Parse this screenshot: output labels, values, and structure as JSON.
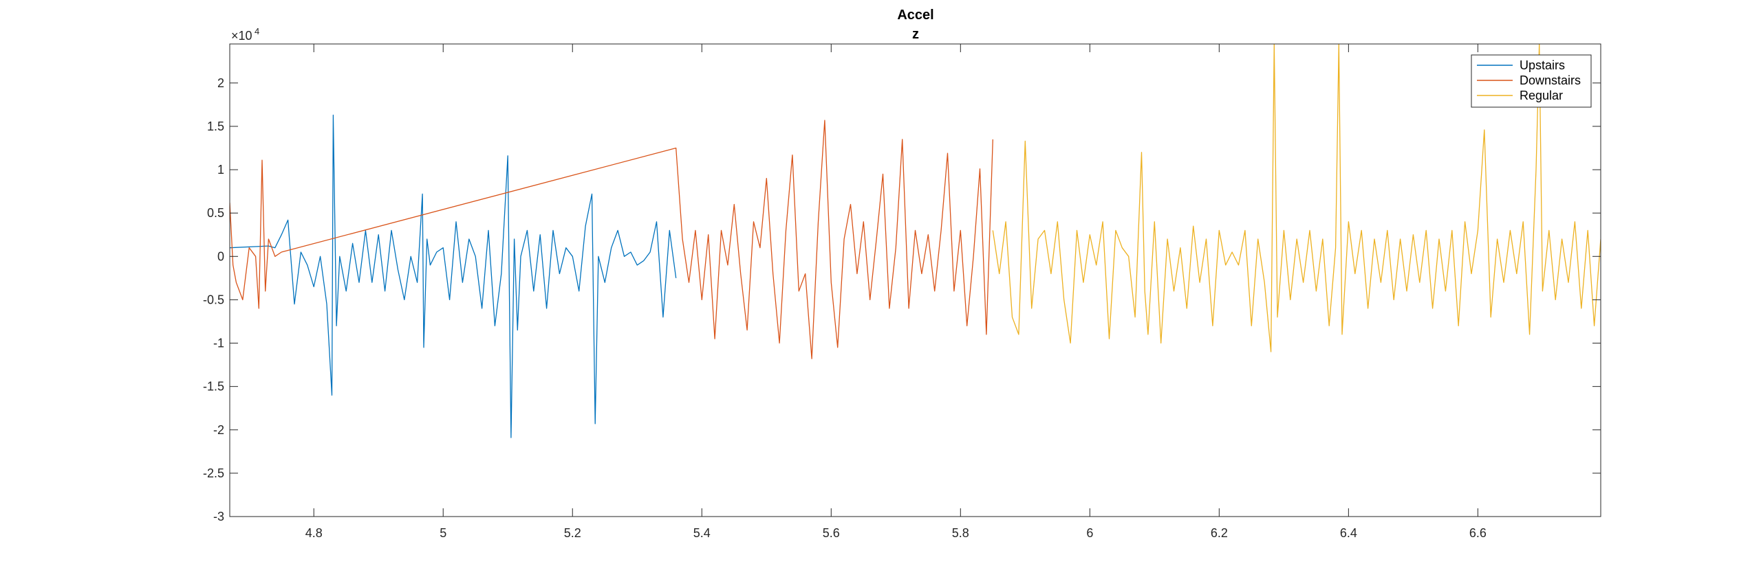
{
  "chart_data": {
    "type": "line",
    "title": "Accel",
    "subtitle": "z",
    "xlabel": "",
    "ylabel": "",
    "y_exponent_label": "×10",
    "y_exponent_power": "4",
    "xlim": [
      4.67,
      6.79
    ],
    "ylim": [
      -3,
      2.45
    ],
    "x_ticks": [
      4.8,
      5,
      5.2,
      5.4,
      5.6,
      5.8,
      6,
      6.2,
      6.4,
      6.6
    ],
    "x_tick_labels": [
      "4.8",
      "5",
      "5.2",
      "5.4",
      "5.6",
      "5.8",
      "6",
      "6.2",
      "6.4",
      "6.6"
    ],
    "y_ticks": [
      -3,
      -2.5,
      -2,
      -1.5,
      -1,
      -0.5,
      0,
      0.5,
      1,
      1.5,
      2
    ],
    "y_tick_labels": [
      "-3",
      "-2.5",
      "-2",
      "-1.5",
      "-1",
      "-0.5",
      "0",
      "0.5",
      "1",
      "1.5",
      "2"
    ],
    "grid": false,
    "legend_position": "top-right",
    "series": [
      {
        "name": "Upstairs",
        "color": "#0072BD",
        "x": [
          4.67,
          4.73,
          4.74,
          4.75,
          4.76,
          4.77,
          4.78,
          4.79,
          4.8,
          4.81,
          4.82,
          4.828,
          4.83,
          4.835,
          4.84,
          4.85,
          4.86,
          4.87,
          4.88,
          4.89,
          4.9,
          4.91,
          4.92,
          4.93,
          4.94,
          4.95,
          4.96,
          4.968,
          4.97,
          4.975,
          4.98,
          4.99,
          5.0,
          5.01,
          5.02,
          5.03,
          5.04,
          5.05,
          5.06,
          5.07,
          5.08,
          5.09,
          5.1,
          5.105,
          5.11,
          5.115,
          5.12,
          5.13,
          5.14,
          5.15,
          5.16,
          5.17,
          5.18,
          5.19,
          5.2,
          5.21,
          5.22,
          5.23,
          5.235,
          5.24,
          5.25,
          5.26,
          5.27,
          5.28,
          5.29,
          5.3,
          5.31,
          5.32,
          5.33,
          5.34,
          5.35,
          5.36
        ],
        "y": [
          0.1,
          0.12,
          0.1,
          0.25,
          0.42,
          -0.55,
          0.05,
          -0.1,
          -0.35,
          0.0,
          -0.55,
          -1.6,
          1.63,
          -0.8,
          0.0,
          -0.4,
          0.15,
          -0.3,
          0.3,
          -0.3,
          0.25,
          -0.4,
          0.3,
          -0.15,
          -0.5,
          0.0,
          -0.3,
          0.72,
          -1.05,
          0.2,
          -0.1,
          0.05,
          0.1,
          -0.5,
          0.4,
          -0.3,
          0.2,
          0.0,
          -0.6,
          0.3,
          -0.8,
          -0.2,
          1.16,
          -2.09,
          0.2,
          -0.85,
          0.0,
          0.3,
          -0.4,
          0.25,
          -0.6,
          0.3,
          -0.2,
          0.1,
          0.0,
          -0.4,
          0.35,
          0.72,
          -1.93,
          0.0,
          -0.3,
          0.1,
          0.3,
          0.0,
          0.05,
          -0.1,
          -0.05,
          0.05,
          0.4,
          -0.7,
          0.3,
          -0.25
        ]
      },
      {
        "name": "Downstairs",
        "color": "#D95319",
        "x": [
          4.67,
          4.675,
          4.68,
          4.69,
          4.7,
          4.71,
          4.715,
          4.72,
          4.725,
          4.73,
          4.74,
          4.75,
          5.36,
          5.37,
          5.38,
          5.39,
          5.4,
          5.41,
          5.42,
          5.43,
          5.44,
          5.45,
          5.46,
          5.47,
          5.48,
          5.49,
          5.5,
          5.51,
          5.52,
          5.53,
          5.54,
          5.55,
          5.56,
          5.57,
          5.58,
          5.59,
          5.6,
          5.61,
          5.62,
          5.63,
          5.64,
          5.65,
          5.66,
          5.67,
          5.68,
          5.69,
          5.7,
          5.71,
          5.72,
          5.73,
          5.74,
          5.75,
          5.76,
          5.77,
          5.78,
          5.79,
          5.8,
          5.81,
          5.82,
          5.83,
          5.84,
          5.85
        ],
        "y": [
          0.62,
          -0.1,
          -0.3,
          -0.5,
          0.1,
          0.0,
          -0.6,
          1.11,
          -0.4,
          0.2,
          0.0,
          0.05,
          1.25,
          0.2,
          -0.3,
          0.3,
          -0.5,
          0.25,
          -0.95,
          0.3,
          -0.1,
          0.6,
          -0.2,
          -0.85,
          0.4,
          0.1,
          0.9,
          -0.2,
          -1.0,
          0.3,
          1.17,
          -0.4,
          -0.2,
          -1.18,
          0.4,
          1.57,
          -0.3,
          -1.05,
          0.2,
          0.6,
          -0.2,
          0.4,
          -0.5,
          0.2,
          0.95,
          -0.6,
          0.1,
          1.35,
          -0.6,
          0.3,
          -0.2,
          0.25,
          -0.4,
          0.3,
          1.19,
          -0.4,
          0.3,
          -0.8,
          0.0,
          1.01,
          -0.9,
          1.35
        ]
      },
      {
        "name": "Regular",
        "color": "#EDB120",
        "x": [
          5.85,
          5.86,
          5.87,
          5.88,
          5.89,
          5.9,
          5.91,
          5.92,
          5.93,
          5.94,
          5.95,
          5.96,
          5.97,
          5.98,
          5.99,
          6.0,
          6.01,
          6.02,
          6.03,
          6.04,
          6.05,
          6.06,
          6.07,
          6.08,
          6.085,
          6.09,
          6.1,
          6.11,
          6.12,
          6.13,
          6.14,
          6.15,
          6.16,
          6.17,
          6.18,
          6.19,
          6.2,
          6.21,
          6.22,
          6.23,
          6.24,
          6.25,
          6.26,
          6.27,
          6.28,
          6.285,
          6.29,
          6.3,
          6.31,
          6.32,
          6.33,
          6.34,
          6.35,
          6.36,
          6.37,
          6.38,
          6.385,
          6.39,
          6.4,
          6.41,
          6.42,
          6.43,
          6.44,
          6.45,
          6.46,
          6.47,
          6.48,
          6.49,
          6.5,
          6.51,
          6.52,
          6.53,
          6.54,
          6.55,
          6.56,
          6.57,
          6.58,
          6.59,
          6.6,
          6.61,
          6.62,
          6.63,
          6.64,
          6.65,
          6.66,
          6.67,
          6.68,
          6.69,
          6.695,
          6.7,
          6.71,
          6.72,
          6.73,
          6.74,
          6.75,
          6.76,
          6.77,
          6.78,
          6.79
        ],
        "y": [
          0.3,
          -0.2,
          0.4,
          -0.7,
          -0.9,
          1.33,
          -0.6,
          0.2,
          0.3,
          -0.2,
          0.4,
          -0.5,
          -1.0,
          0.3,
          -0.3,
          0.25,
          -0.1,
          0.4,
          -0.95,
          0.3,
          0.1,
          0.0,
          -0.7,
          1.2,
          -0.4,
          -0.9,
          0.4,
          -1.0,
          0.2,
          -0.4,
          0.1,
          -0.6,
          0.35,
          -0.3,
          0.2,
          -0.8,
          0.3,
          -0.1,
          0.05,
          -0.1,
          0.3,
          -0.8,
          0.2,
          -0.3,
          -1.1,
          2.45,
          -0.7,
          0.3,
          -0.5,
          0.2,
          -0.3,
          0.3,
          -0.4,
          0.2,
          -0.8,
          0.1,
          2.45,
          -0.9,
          0.4,
          -0.2,
          0.3,
          -0.6,
          0.2,
          -0.3,
          0.3,
          -0.5,
          0.2,
          -0.4,
          0.25,
          -0.3,
          0.3,
          -0.6,
          0.2,
          -0.4,
          0.3,
          -0.8,
          0.4,
          -0.2,
          0.3,
          1.46,
          -0.7,
          0.2,
          -0.3,
          0.3,
          -0.2,
          0.4,
          -0.9,
          1.0,
          2.45,
          -0.4,
          0.3,
          -0.5,
          0.2,
          -0.3,
          0.4,
          -0.6,
          0.3,
          -0.8,
          0.2
        ]
      }
    ]
  }
}
